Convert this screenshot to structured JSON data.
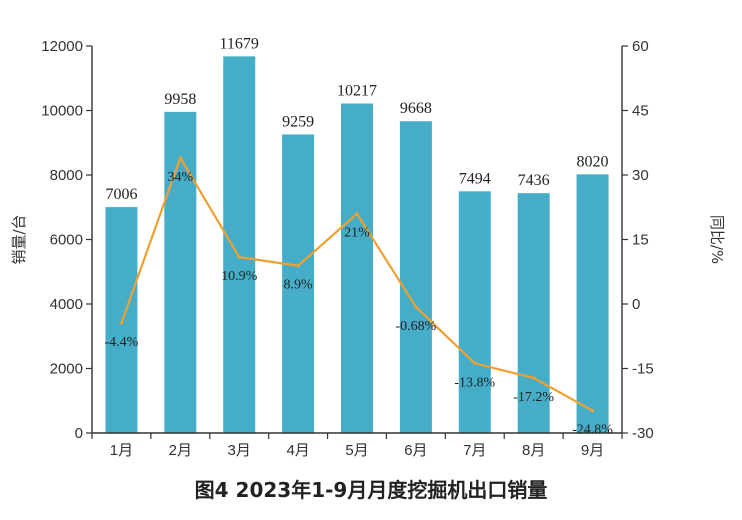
{
  "chart_data": {
    "type": "bar",
    "title": "图4 2023年1-9月月度挖掘机出口销量",
    "categories": [
      "1月",
      "2月",
      "3月",
      "4月",
      "5月",
      "6月",
      "7月",
      "8月",
      "9月"
    ],
    "series": [
      {
        "type": "bar",
        "axis": "left",
        "values": [
          7006,
          9958,
          11679,
          9259,
          10217,
          9668,
          7494,
          7436,
          8020
        ],
        "labels": [
          "7006",
          "9958",
          "11679",
          "9259",
          "10217",
          "9668",
          "7494",
          "7436",
          "8020"
        ],
        "color": "#45ADC8"
      },
      {
        "type": "line",
        "axis": "right",
        "values": [
          -4.4,
          34,
          10.9,
          8.9,
          21,
          -0.68,
          -13.8,
          -17.2,
          -24.8
        ],
        "labels": [
          "-4.4%",
          "34%",
          "10.9%",
          "8.9%",
          "21%",
          "-0.68%",
          "-13.8%",
          "-17.2%",
          "-24.8%"
        ],
        "color": "#F0A030"
      }
    ],
    "y_left": {
      "label": "销量/台",
      "range": [
        0,
        12000
      ],
      "ticks": [
        0,
        2000,
        4000,
        6000,
        8000,
        10000,
        12000
      ],
      "tick_labels": [
        "0",
        "2000",
        "4000",
        "6000",
        "8000",
        "10000",
        "12000"
      ]
    },
    "y_right": {
      "label": "同比/%",
      "range": [
        -30,
        60
      ],
      "ticks": [
        -30,
        -15,
        0,
        15,
        30,
        45,
        60
      ],
      "tick_labels": [
        "-30",
        "-15",
        "0",
        "15",
        "30",
        "45",
        "60"
      ]
    },
    "grid": false,
    "legend": "none"
  }
}
